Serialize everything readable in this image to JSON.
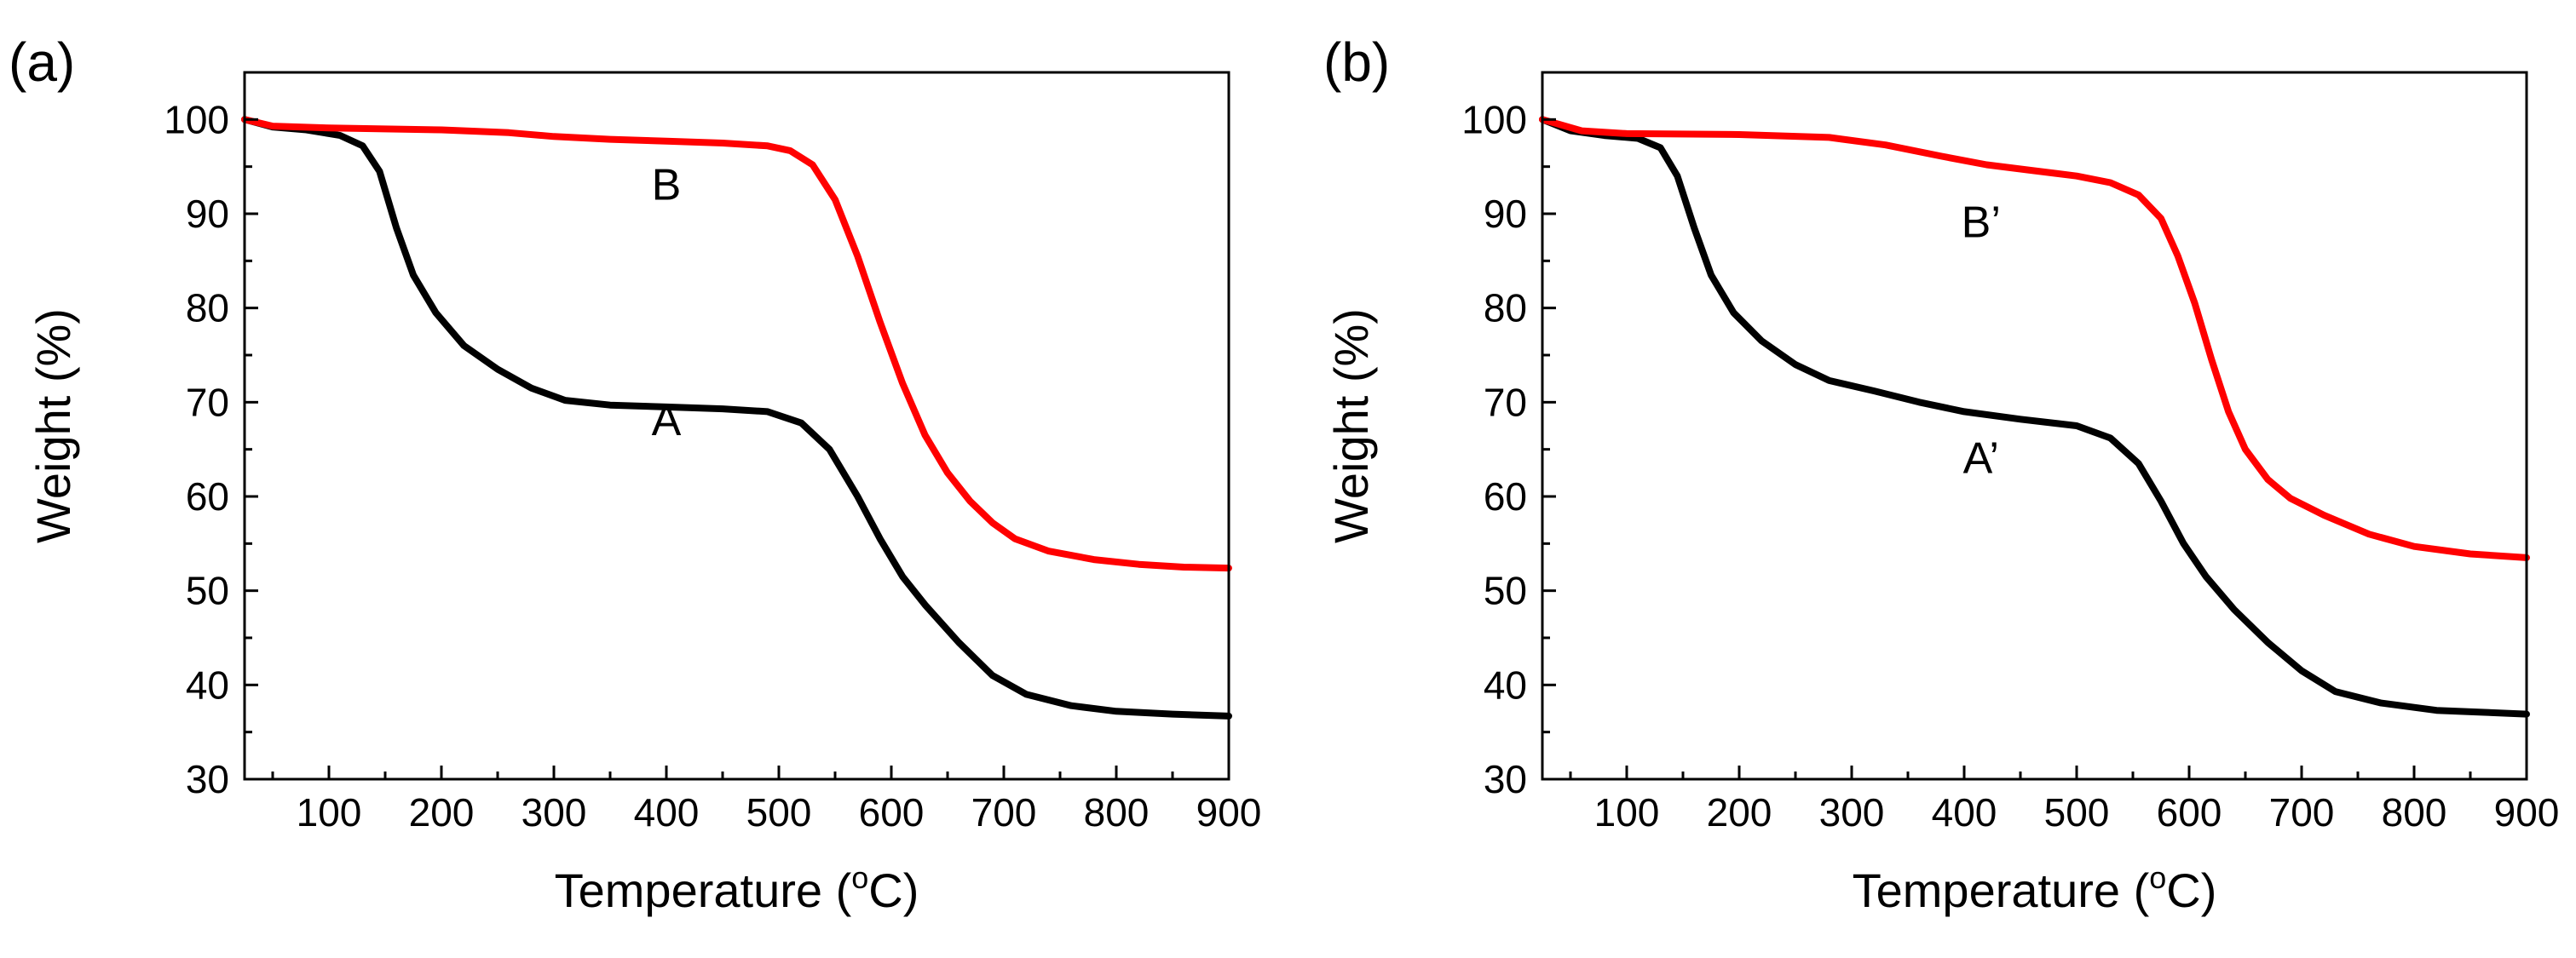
{
  "chart_data": [
    {
      "type": "line",
      "panel_label": "(a)",
      "xlabel": "Temperature (",
      "xlabel_sup": "o",
      "xlabel_unit": "C)",
      "ylabel": "Weight (%)",
      "xlim": [
        25,
        900
      ],
      "ylim": [
        30,
        105
      ],
      "x_ticks": [
        100,
        200,
        300,
        400,
        500,
        600,
        700,
        800,
        900
      ],
      "x_tick_labels": [
        "100",
        "200",
        "300",
        "400",
        "500",
        "600",
        "700",
        "800",
        "900"
      ],
      "y_ticks": [
        30,
        40,
        50,
        60,
        70,
        80,
        90,
        100
      ],
      "y_tick_labels": [
        "30",
        "40",
        "50",
        "60",
        "70",
        "80",
        "90",
        "100"
      ],
      "series": [
        {
          "name": "A",
          "color": "#000000",
          "label_at": [
            400,
            66.5
          ],
          "points": [
            [
              25,
              100
            ],
            [
              50,
              99.2
            ],
            [
              80,
              98.9
            ],
            [
              110,
              98.3
            ],
            [
              130,
              97.2
            ],
            [
              145,
              94.5
            ],
            [
              160,
              88.5
            ],
            [
              175,
              83.5
            ],
            [
              195,
              79.5
            ],
            [
              220,
              76
            ],
            [
              250,
              73.5
            ],
            [
              280,
              71.5
            ],
            [
              310,
              70.2
            ],
            [
              350,
              69.7
            ],
            [
              400,
              69.5
            ],
            [
              450,
              69.3
            ],
            [
              490,
              69
            ],
            [
              520,
              67.8
            ],
            [
              545,
              65
            ],
            [
              570,
              60
            ],
            [
              590,
              55.5
            ],
            [
              610,
              51.5
            ],
            [
              630,
              48.5
            ],
            [
              660,
              44.5
            ],
            [
              690,
              41
            ],
            [
              720,
              39
            ],
            [
              760,
              37.8
            ],
            [
              800,
              37.2
            ],
            [
              850,
              36.9
            ],
            [
              900,
              36.7
            ]
          ]
        },
        {
          "name": "B",
          "color": "#ff0000",
          "label_at": [
            400,
            91.5
          ],
          "points": [
            [
              25,
              100
            ],
            [
              50,
              99.3
            ],
            [
              100,
              99.1
            ],
            [
              200,
              98.9
            ],
            [
              260,
              98.6
            ],
            [
              300,
              98.2
            ],
            [
              350,
              97.9
            ],
            [
              400,
              97.7
            ],
            [
              450,
              97.5
            ],
            [
              490,
              97.2
            ],
            [
              510,
              96.7
            ],
            [
              530,
              95.2
            ],
            [
              550,
              91.5
            ],
            [
              570,
              85.5
            ],
            [
              590,
              78.5
            ],
            [
              610,
              72
            ],
            [
              630,
              66.5
            ],
            [
              650,
              62.5
            ],
            [
              670,
              59.5
            ],
            [
              690,
              57.2
            ],
            [
              710,
              55.5
            ],
            [
              740,
              54.2
            ],
            [
              780,
              53.3
            ],
            [
              820,
              52.8
            ],
            [
              860,
              52.5
            ],
            [
              900,
              52.4
            ]
          ]
        }
      ]
    },
    {
      "type": "line",
      "panel_label": "(b)",
      "xlabel": "Temperature (",
      "xlabel_sup": "o",
      "xlabel_unit": "C)",
      "ylabel": "Weight (%)",
      "xlim": [
        25,
        900
      ],
      "ylim": [
        30,
        105
      ],
      "x_ticks": [
        100,
        200,
        300,
        400,
        500,
        600,
        700,
        800,
        900
      ],
      "x_tick_labels": [
        "100",
        "200",
        "300",
        "400",
        "500",
        "600",
        "700",
        "800",
        "900"
      ],
      "y_ticks": [
        30,
        40,
        50,
        60,
        70,
        80,
        90,
        100
      ],
      "y_tick_labels": [
        "30",
        "40",
        "50",
        "60",
        "70",
        "80",
        "90",
        "100"
      ],
      "series": [
        {
          "name": "A’",
          "color": "#000000",
          "label_at": [
            415,
            62.5
          ],
          "points": [
            [
              25,
              100
            ],
            [
              50,
              98.8
            ],
            [
              80,
              98.3
            ],
            [
              110,
              98
            ],
            [
              130,
              97
            ],
            [
              145,
              94
            ],
            [
              160,
              88.5
            ],
            [
              175,
              83.5
            ],
            [
              195,
              79.5
            ],
            [
              220,
              76.5
            ],
            [
              250,
              74
            ],
            [
              280,
              72.3
            ],
            [
              320,
              71.2
            ],
            [
              360,
              70
            ],
            [
              400,
              69
            ],
            [
              450,
              68.2
            ],
            [
              500,
              67.5
            ],
            [
              530,
              66.2
            ],
            [
              555,
              63.5
            ],
            [
              575,
              59.5
            ],
            [
              595,
              55
            ],
            [
              615,
              51.5
            ],
            [
              640,
              48
            ],
            [
              670,
              44.5
            ],
            [
              700,
              41.5
            ],
            [
              730,
              39.3
            ],
            [
              770,
              38.1
            ],
            [
              820,
              37.3
            ],
            [
              860,
              37.1
            ],
            [
              900,
              36.9
            ]
          ]
        },
        {
          "name": "B’",
          "color": "#ff0000",
          "label_at": [
            415,
            87.5
          ],
          "points": [
            [
              25,
              100
            ],
            [
              60,
              98.8
            ],
            [
              100,
              98.5
            ],
            [
              200,
              98.4
            ],
            [
              280,
              98.1
            ],
            [
              330,
              97.3
            ],
            [
              380,
              96.1
            ],
            [
              420,
              95.2
            ],
            [
              460,
              94.6
            ],
            [
              500,
              94
            ],
            [
              530,
              93.3
            ],
            [
              555,
              92
            ],
            [
              575,
              89.5
            ],
            [
              590,
              85.5
            ],
            [
              605,
              80.5
            ],
            [
              620,
              74.5
            ],
            [
              635,
              69
            ],
            [
              650,
              65
            ],
            [
              670,
              61.8
            ],
            [
              690,
              59.8
            ],
            [
              720,
              58
            ],
            [
              760,
              56
            ],
            [
              800,
              54.7
            ],
            [
              850,
              53.9
            ],
            [
              900,
              53.5
            ]
          ]
        }
      ]
    }
  ]
}
